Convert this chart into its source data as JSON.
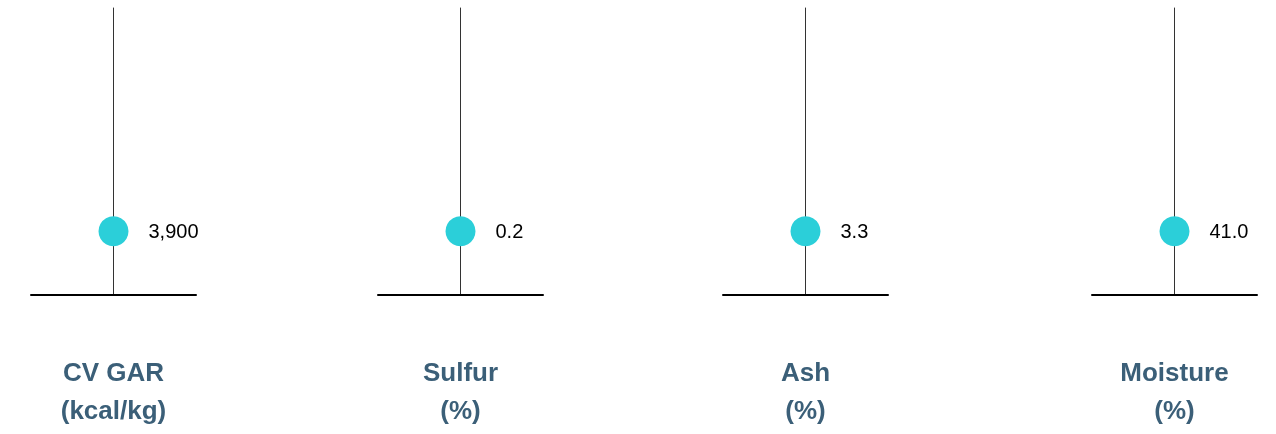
{
  "chart_data": [
    {
      "type": "other",
      "xlabel": "CV GAR\n(kcal/kg)",
      "categories": [
        null
      ],
      "values": [
        3900
      ],
      "value_labels": [
        "3,900"
      ],
      "color": "#2bcfd9"
    },
    {
      "type": "other",
      "xlabel": "Sulfur\n(%)",
      "categories": [
        null
      ],
      "values": [
        0.2
      ],
      "value_labels": [
        "0.2"
      ],
      "color": "#2bcfd9"
    },
    {
      "type": "other",
      "xlabel": "Ash\n(%)",
      "categories": [
        null
      ],
      "values": [
        3.3
      ],
      "value_labels": [
        "3.3"
      ],
      "color": "#2bcfd9"
    },
    {
      "type": "other",
      "xlabel": "Moisture\n(%)",
      "categories": [
        null
      ],
      "values": [
        41.0
      ],
      "value_labels": [
        "41.0"
      ],
      "color": "#2bcfd9"
    }
  ]
}
